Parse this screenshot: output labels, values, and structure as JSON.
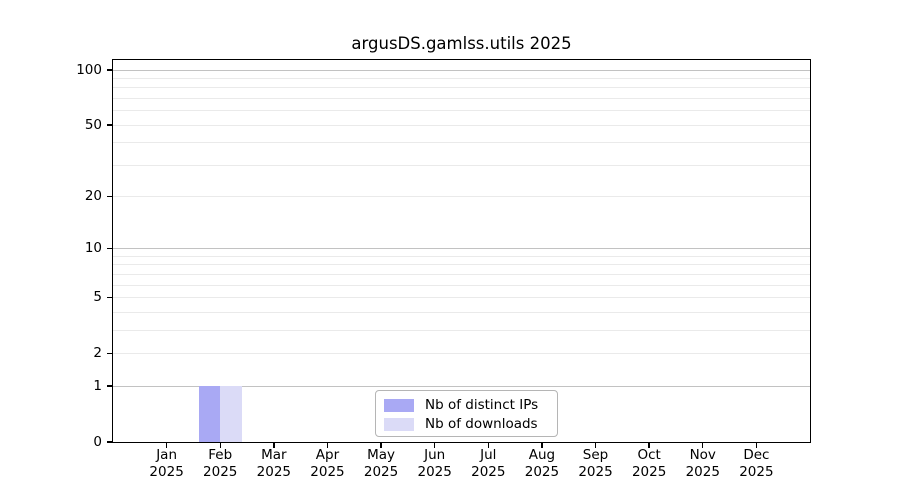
{
  "title": "argusDS.gamlss.utils 2025",
  "chart_data": {
    "type": "bar",
    "title": "argusDS.gamlss.utils 2025",
    "categories": [
      "Jan",
      "Feb",
      "Mar",
      "Apr",
      "May",
      "Jun",
      "Jul",
      "Aug",
      "Sep",
      "Oct",
      "Nov",
      "Dec"
    ],
    "year": "2025",
    "series": [
      {
        "name": "Nb of distinct IPs",
        "color": "#a9a9f4",
        "values": [
          0,
          1,
          0,
          0,
          0,
          0,
          0,
          0,
          0,
          0,
          0,
          0
        ]
      },
      {
        "name": "Nb of downloads",
        "color": "#dbdbf7",
        "values": [
          0,
          1,
          0,
          0,
          0,
          0,
          0,
          0,
          0,
          0,
          0,
          0
        ]
      }
    ],
    "xlabel": "",
    "ylabel": "",
    "yscale": "log1p",
    "ylim": [
      0,
      113.5
    ],
    "yticks": [
      0,
      1,
      2,
      5,
      10,
      20,
      50,
      100
    ],
    "grid_major": [
      1,
      10,
      100
    ],
    "grid_minor": [
      2,
      3,
      4,
      5,
      6,
      7,
      8,
      9,
      20,
      30,
      40,
      50,
      60,
      70,
      80,
      90
    ],
    "grid": "horizontal",
    "legend_position": "lower center inside",
    "colors": {
      "grid_major": "#c2c2c2",
      "grid_minor": "#eaeaea",
      "axis": "#000000",
      "background": "#ffffff"
    }
  }
}
